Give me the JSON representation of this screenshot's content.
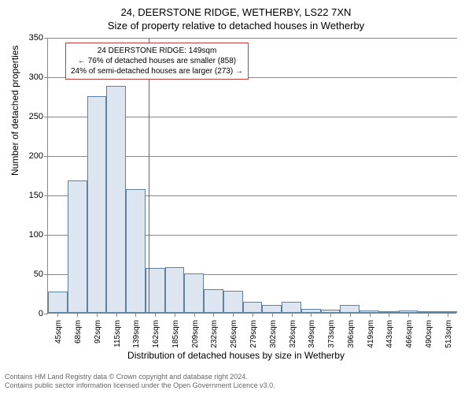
{
  "title_main": "24, DEERSTONE RIDGE, WETHERBY, LS22 7XN",
  "title_sub": "Size of property relative to detached houses in Wetherby",
  "yaxis_label": "Number of detached properties",
  "xaxis_label": "Distribution of detached houses by size in Wetherby",
  "chart": {
    "type": "histogram",
    "ylim": [
      0,
      350
    ],
    "ytick_step": 50,
    "yticks": [
      0,
      50,
      100,
      150,
      200,
      250,
      300,
      350
    ],
    "bar_fill": "#dde6f0",
    "bar_stroke": "#6080a0",
    "grid_color": "#888888",
    "background": "#ffffff",
    "ref_line_value": 149,
    "ref_line_color": "#c04040",
    "x_labels": [
      "45sqm",
      "68sqm",
      "92sqm",
      "115sqm",
      "139sqm",
      "162sqm",
      "185sqm",
      "209sqm",
      "232sqm",
      "256sqm",
      "279sqm",
      "302sqm",
      "326sqm",
      "349sqm",
      "373sqm",
      "396sqm",
      "419sqm",
      "443sqm",
      "466sqm",
      "490sqm",
      "513sqm"
    ],
    "values": [
      27,
      168,
      275,
      288,
      157,
      57,
      58,
      50,
      30,
      28,
      14,
      10,
      14,
      5,
      4,
      10,
      3,
      1,
      3,
      2,
      2
    ]
  },
  "annotation": {
    "line1": "24 DEERSTONE RIDGE: 149sqm",
    "line2": "← 76% of detached houses are smaller (858)",
    "line3": "24% of semi-detached houses are larger (273) →",
    "border_color": "#c04040"
  },
  "footer": {
    "line1": "Contains HM Land Registry data © Crown copyright and database right 2024.",
    "line2": "Contains public sector information licensed under the Open Government Licence v3.0."
  }
}
